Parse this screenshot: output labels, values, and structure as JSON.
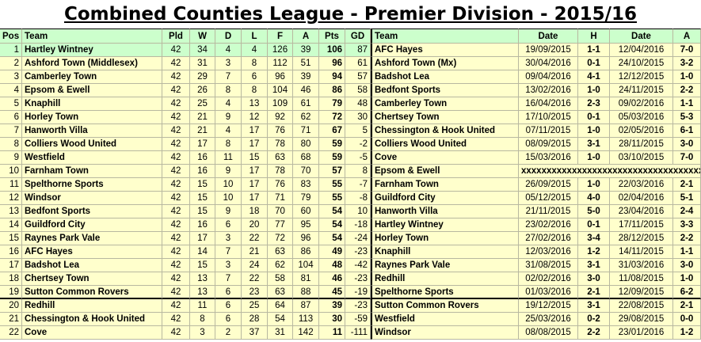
{
  "title": "Combined Counties League - Premier Division - 2015/16",
  "header": [
    "Pos",
    "Team",
    "Pld",
    "W",
    "D",
    "L",
    "F",
    "A",
    "Pts",
    "GD",
    "Team",
    "Date",
    "H",
    "Date",
    "A"
  ],
  "rows": [
    {
      "standing": [
        1,
        "Hartley Wintney",
        42,
        34,
        4,
        4,
        126,
        39,
        106,
        87
      ],
      "fixture": [
        "AFC Hayes",
        "19/09/2015",
        "1-1",
        "12/04/2016",
        "7-0"
      ]
    },
    {
      "standing": [
        2,
        "Ashford Town (Middlesex)",
        42,
        31,
        3,
        8,
        112,
        51,
        96,
        61
      ],
      "fixture": [
        "Ashford Town (Mx)",
        "30/04/2016",
        "0-1",
        "24/10/2015",
        "3-2"
      ]
    },
    {
      "standing": [
        3,
        "Camberley Town",
        42,
        29,
        7,
        6,
        96,
        39,
        94,
        57
      ],
      "fixture": [
        "Badshot Lea",
        "09/04/2016",
        "4-1",
        "12/12/2015",
        "1-0"
      ]
    },
    {
      "standing": [
        4,
        "Epsom & Ewell",
        42,
        26,
        8,
        8,
        104,
        46,
        86,
        58
      ],
      "fixture": [
        "Bedfont Sports",
        "13/02/2016",
        "1-0",
        "24/11/2015",
        "2-2"
      ]
    },
    {
      "standing": [
        5,
        "Knaphill",
        42,
        25,
        4,
        13,
        109,
        61,
        79,
        48
      ],
      "fixture": [
        "Camberley Town",
        "16/04/2016",
        "2-3",
        "09/02/2016",
        "1-1"
      ]
    },
    {
      "standing": [
        6,
        "Horley Town",
        42,
        21,
        9,
        12,
        92,
        62,
        72,
        30
      ],
      "fixture": [
        "Chertsey Town",
        "17/10/2015",
        "0-1",
        "05/03/2016",
        "5-3"
      ]
    },
    {
      "standing": [
        7,
        "Hanworth Villa",
        42,
        21,
        4,
        17,
        76,
        71,
        67,
        5
      ],
      "fixture": [
        "Chessington & Hook United",
        "07/11/2015",
        "1-0",
        "02/05/2016",
        "6-1"
      ]
    },
    {
      "standing": [
        8,
        "Colliers Wood United",
        42,
        17,
        8,
        17,
        78,
        80,
        59,
        -2
      ],
      "fixture": [
        "Colliers Wood United",
        "08/09/2015",
        "3-1",
        "28/11/2015",
        "3-0"
      ]
    },
    {
      "standing": [
        9,
        "Westfield",
        42,
        16,
        11,
        15,
        63,
        68,
        59,
        -5
      ],
      "fixture": [
        "Cove",
        "15/03/2016",
        "1-0",
        "03/10/2015",
        "7-0"
      ]
    },
    {
      "standing": [
        10,
        "Farnham Town",
        42,
        16,
        9,
        17,
        78,
        70,
        57,
        8
      ],
      "fixture": [
        "Epsom & Ewell",
        "xxxxxxxxxxxxxxxxxxxxxxxxxxxxxxxxxxxx"
      ]
    },
    {
      "standing": [
        11,
        "Spelthorne Sports",
        42,
        15,
        10,
        17,
        76,
        83,
        55,
        -7
      ],
      "fixture": [
        "Farnham Town",
        "26/09/2015",
        "1-0",
        "22/03/2016",
        "2-1"
      ]
    },
    {
      "standing": [
        12,
        "Windsor",
        42,
        15,
        10,
        17,
        71,
        79,
        55,
        -8
      ],
      "fixture": [
        "Guildford City",
        "05/12/2015",
        "4-0",
        "02/04/2016",
        "5-1"
      ]
    },
    {
      "standing": [
        13,
        "Bedfont Sports",
        42,
        15,
        9,
        18,
        70,
        60,
        54,
        10
      ],
      "fixture": [
        "Hanworth Villa",
        "21/11/2015",
        "5-0",
        "23/04/2016",
        "2-4"
      ]
    },
    {
      "standing": [
        14,
        "Guildford City",
        42,
        16,
        6,
        20,
        77,
        95,
        54,
        -18
      ],
      "fixture": [
        "Hartley Wintney",
        "23/02/2016",
        "0-1",
        "17/11/2015",
        "3-3"
      ]
    },
    {
      "standing": [
        15,
        "Raynes Park Vale",
        42,
        17,
        3,
        22,
        72,
        96,
        54,
        -24
      ],
      "fixture": [
        "Horley Town",
        "27/02/2016",
        "3-4",
        "28/12/2015",
        "2-2"
      ]
    },
    {
      "standing": [
        16,
        "AFC Hayes",
        42,
        14,
        7,
        21,
        63,
        86,
        49,
        -23
      ],
      "fixture": [
        "Knaphill",
        "12/03/2016",
        "1-2",
        "14/11/2015",
        "1-1"
      ]
    },
    {
      "standing": [
        17,
        "Badshot Lea",
        42,
        15,
        3,
        24,
        62,
        104,
        48,
        -42
      ],
      "fixture": [
        "Raynes Park Vale",
        "31/08/2015",
        "3-1",
        "31/03/2016",
        "3-0"
      ]
    },
    {
      "standing": [
        18,
        "Chertsey Town",
        42,
        13,
        7,
        22,
        58,
        81,
        46,
        -23
      ],
      "fixture": [
        "Redhill",
        "02/02/2016",
        "3-0",
        "11/08/2015",
        "1-0"
      ]
    },
    {
      "standing": [
        19,
        "Sutton Common Rovers",
        42,
        13,
        6,
        23,
        63,
        88,
        45,
        -19
      ],
      "fixture": [
        "Spelthorne Sports",
        "01/03/2016",
        "2-1",
        "12/09/2015",
        "6-2"
      ]
    },
    {
      "standing": [
        20,
        "Redhill",
        42,
        11,
        6,
        25,
        64,
        87,
        39,
        -23
      ],
      "fixture": [
        "Sutton Common Rovers",
        "19/12/2015",
        "3-1",
        "22/08/2015",
        "2-1"
      ]
    },
    {
      "standing": [
        21,
        "Chessington & Hook United",
        42,
        8,
        6,
        28,
        54,
        113,
        30,
        -59
      ],
      "fixture": [
        "Westfield",
        "25/03/2016",
        "0-2",
        "29/08/2015",
        "0-0"
      ]
    },
    {
      "standing": [
        22,
        "Cove",
        42,
        3,
        2,
        37,
        31,
        142,
        11,
        -111
      ],
      "fixture": [
        "Windsor",
        "08/08/2015",
        "2-2",
        "23/01/2016",
        "1-2"
      ]
    }
  ]
}
